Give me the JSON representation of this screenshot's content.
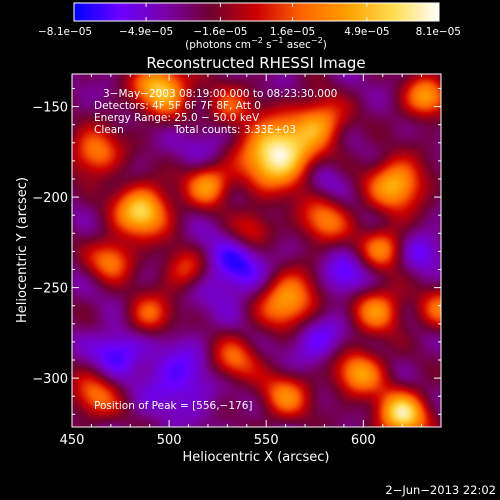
{
  "chart_data": {
    "type": "heatmap",
    "title": "Reconstructed RHESSI Image",
    "xlabel": "Heliocentric X (arcsec)",
    "ylabel": "Heliocentric Y (arcsec)",
    "xlim": [
      450,
      640
    ],
    "ylim": [
      -327,
      -132
    ],
    "x_ticks": [
      450,
      500,
      550,
      600
    ],
    "y_ticks": [
      -150,
      -200,
      -250,
      -300
    ],
    "x_tick_labels": [
      "450",
      "500",
      "550",
      "600"
    ],
    "y_tick_labels": [
      "−150",
      "−200",
      "−250",
      "−300"
    ],
    "colorbar": {
      "range": [
        -8.1e-05,
        8.1e-05
      ],
      "ticks": [
        -8.1e-05,
        -4.9e-05,
        -1.6e-05,
        1.6e-05,
        4.9e-05,
        8.1e-05
      ],
      "tick_labels": [
        "−8.1e−05",
        "−4.9e−05",
        "−1.6e−05",
        "1.6e−05",
        "4.9e−05",
        "8.1e−05"
      ],
      "label_text": "(photons cm",
      "label_exp1": "−2",
      "label_mid": " s",
      "label_exp2": "−1",
      "label_mid2": " asec",
      "label_exp3": "−2",
      "label_end": ")",
      "colors": [
        "#0000ff",
        "#6a00ff",
        "#7a00a8",
        "#700030",
        "#cc0000",
        "#ff6400",
        "#ffa000",
        "#ffdc50",
        "#ffffff"
      ]
    },
    "annotations": {
      "time": "3−May−2003 08:19:00.000 to 08:23:30.000",
      "detectors": "Detectors: 4F 5F 6F 7F 8F, Att 0",
      "energy": "Energy Range: 25.0 − 50.0 keV",
      "clean": "Clean",
      "counts": "Total counts: 3.33E+03",
      "peak": "Position of Peak = [556,−176]"
    },
    "peak_position": [
      556,
      -176
    ],
    "sources": [
      {
        "x": 556,
        "y": -176,
        "a": 1.0,
        "s": 13
      },
      {
        "x": 578,
        "y": -158,
        "a": 0.55,
        "s": 9
      },
      {
        "x": 496,
        "y": -140,
        "a": 0.75,
        "s": 10
      },
      {
        "x": 462,
        "y": -175,
        "a": 0.55,
        "s": 9
      },
      {
        "x": 486,
        "y": -208,
        "a": 0.8,
        "s": 10
      },
      {
        "x": 520,
        "y": -193,
        "a": 0.6,
        "s": 8
      },
      {
        "x": 543,
        "y": -218,
        "a": 0.35,
        "s": 8
      },
      {
        "x": 580,
        "y": -213,
        "a": 0.5,
        "s": 9
      },
      {
        "x": 617,
        "y": -193,
        "a": 0.7,
        "s": 10
      },
      {
        "x": 632,
        "y": -145,
        "a": 0.6,
        "s": 8
      },
      {
        "x": 610,
        "y": -228,
        "a": 0.5,
        "s": 8
      },
      {
        "x": 470,
        "y": -235,
        "a": 0.5,
        "s": 8
      },
      {
        "x": 508,
        "y": -240,
        "a": 0.4,
        "s": 8
      },
      {
        "x": 561,
        "y": -257,
        "a": 0.7,
        "s": 11
      },
      {
        "x": 607,
        "y": -262,
        "a": 0.55,
        "s": 9
      },
      {
        "x": 490,
        "y": -265,
        "a": 0.45,
        "s": 8
      },
      {
        "x": 462,
        "y": -310,
        "a": 0.45,
        "s": 9
      },
      {
        "x": 533,
        "y": -290,
        "a": 0.45,
        "s": 9
      },
      {
        "x": 560,
        "y": -310,
        "a": 0.5,
        "s": 9
      },
      {
        "x": 598,
        "y": -297,
        "a": 0.6,
        "s": 9
      },
      {
        "x": 620,
        "y": -320,
        "a": 0.85,
        "s": 9
      },
      {
        "x": 640,
        "y": -262,
        "a": 0.45,
        "s": 8
      },
      {
        "x": 530,
        "y": -150,
        "a": 0.4,
        "s": 8
      },
      {
        "x": 535,
        "y": -240,
        "a": -0.35,
        "s": 14
      },
      {
        "x": 575,
        "y": -278,
        "a": -0.3,
        "s": 10
      },
      {
        "x": 505,
        "y": -300,
        "a": -0.3,
        "s": 14
      },
      {
        "x": 473,
        "y": -285,
        "a": -0.35,
        "s": 9
      },
      {
        "x": 590,
        "y": -245,
        "a": -0.3,
        "s": 9
      },
      {
        "x": 630,
        "y": -230,
        "a": -0.25,
        "s": 8
      },
      {
        "x": 520,
        "y": -170,
        "a": -0.2,
        "s": 9
      },
      {
        "x": 580,
        "y": -190,
        "a": -0.2,
        "s": 8
      }
    ]
  },
  "footer": {
    "timestamp": "2−Jun−2013 22:02"
  }
}
